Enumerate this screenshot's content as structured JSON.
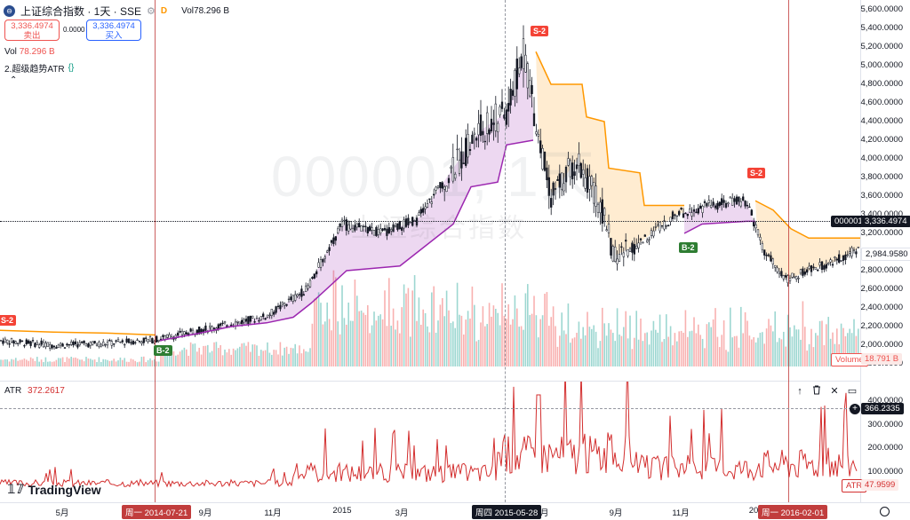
{
  "header": {
    "symbol_title": "上证综合指数 · 1天 · SSE",
    "exchange_badge": "D",
    "vol_label": "Vol",
    "vol_value": "78.296 B",
    "sell_price": "3,336.4974",
    "sell_label": "卖出",
    "spread": "0.0000",
    "buy_price": "3,336.4974",
    "buy_label": "买入",
    "vol_row_label": "Vol",
    "vol_row_value": "78.296 B",
    "indicator_name": "2.超级趋势ATR"
  },
  "watermark": {
    "code": "000001, 1天",
    "name": "上证综合指数"
  },
  "price_axis": {
    "ticks": [
      "5,600.0000",
      "5,400.0000",
      "5,200.0000",
      "5,000.0000",
      "4,800.0000",
      "4,600.0000",
      "4,400.0000",
      "4,200.0000",
      "4,000.0000",
      "3,800.0000",
      "3,600.0000",
      "3,400.0000",
      "3,200.0000",
      "3,000.0000",
      "2,800.0000",
      "2,600.0000",
      "2,400.0000",
      "2,200.0000",
      "2,000.0000",
      "1,800.0000"
    ],
    "symbol_tag": "000001",
    "last_price": "3,336.4974",
    "cursor_price": "2,984.9580",
    "volume_tag": "Volume",
    "volume_value": "18.791 B"
  },
  "atr_pane": {
    "label": "ATR",
    "value": "372.2617",
    "ticks": [
      "400.0000",
      "300.0000",
      "200.0000",
      "100.0000"
    ],
    "crosshair_value": "366.2335",
    "tag": "ATR",
    "last_value": "47.9599"
  },
  "time_axis": {
    "ticks": [
      "5月",
      "9月",
      "11月",
      "2015",
      "3月",
      "7月",
      "9月",
      "11月",
      "20"
    ],
    "crosshair_left": "周一 2014-07-21",
    "crosshair_mid": "周四 2015-05-28",
    "crosshair_right": "周一 2016-02-01"
  },
  "signals": {
    "sell": "S-2",
    "buy": "B-2"
  },
  "logo": {
    "text": "TradingView"
  },
  "colors": {
    "up": "#26a69a",
    "down": "#ef5350",
    "supertrend_up": "#9c27b0",
    "supertrend_down": "#ff9800",
    "atr_line": "#d32f2f",
    "crosshair": "#b71c1c"
  },
  "icons": {
    "arrow_up": "↑",
    "trash": "🗑",
    "collapse": "✕",
    "window": "▭",
    "plus": "+"
  }
}
